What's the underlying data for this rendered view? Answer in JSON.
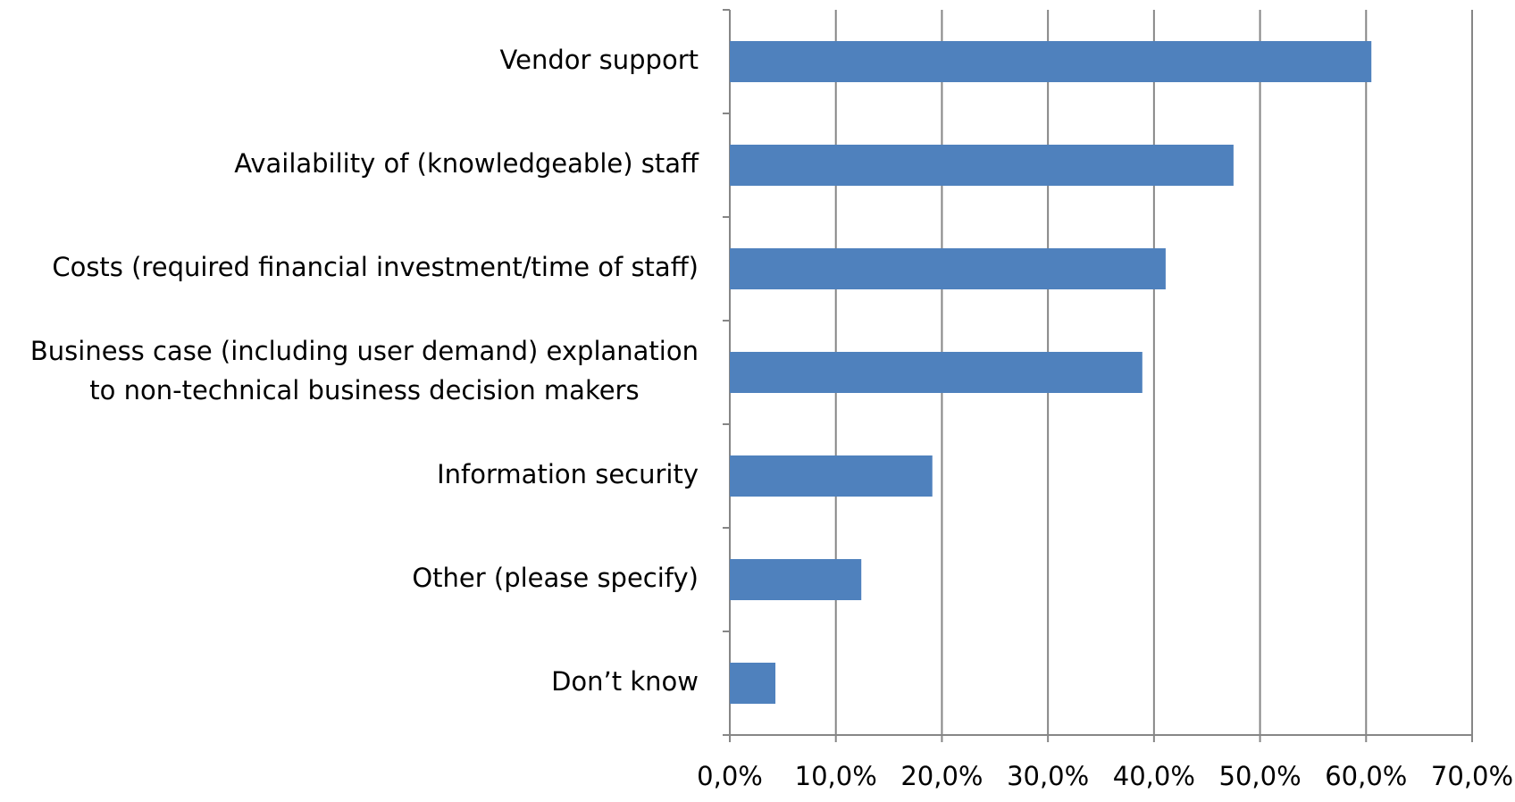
{
  "chart_data": {
    "type": "bar",
    "orientation": "horizontal",
    "categories": [
      "Vendor support",
      "Availability of (knowledgeable) staff",
      "Costs (required financial investment/time of staff)",
      "Business case (including user demand) explanation\nto non-technical business decision makers",
      "Information security",
      "Other (please specify)",
      "Don’t know"
    ],
    "values": [
      60.5,
      47.5,
      41.1,
      38.9,
      19.1,
      12.4,
      4.3
    ],
    "color": "#4f81bd",
    "xlim": [
      0,
      70
    ],
    "xticks": [
      {
        "value": 0,
        "label": "0,0%"
      },
      {
        "value": 10,
        "label": "10,0%"
      },
      {
        "value": 20,
        "label": "20,0%"
      },
      {
        "value": 30,
        "label": "30,0%"
      },
      {
        "value": 40,
        "label": "40,0%"
      },
      {
        "value": 50,
        "label": "50,0%"
      },
      {
        "value": 60,
        "label": "60,0%"
      },
      {
        "value": 70,
        "label": "70,0%"
      }
    ],
    "grid": true
  }
}
